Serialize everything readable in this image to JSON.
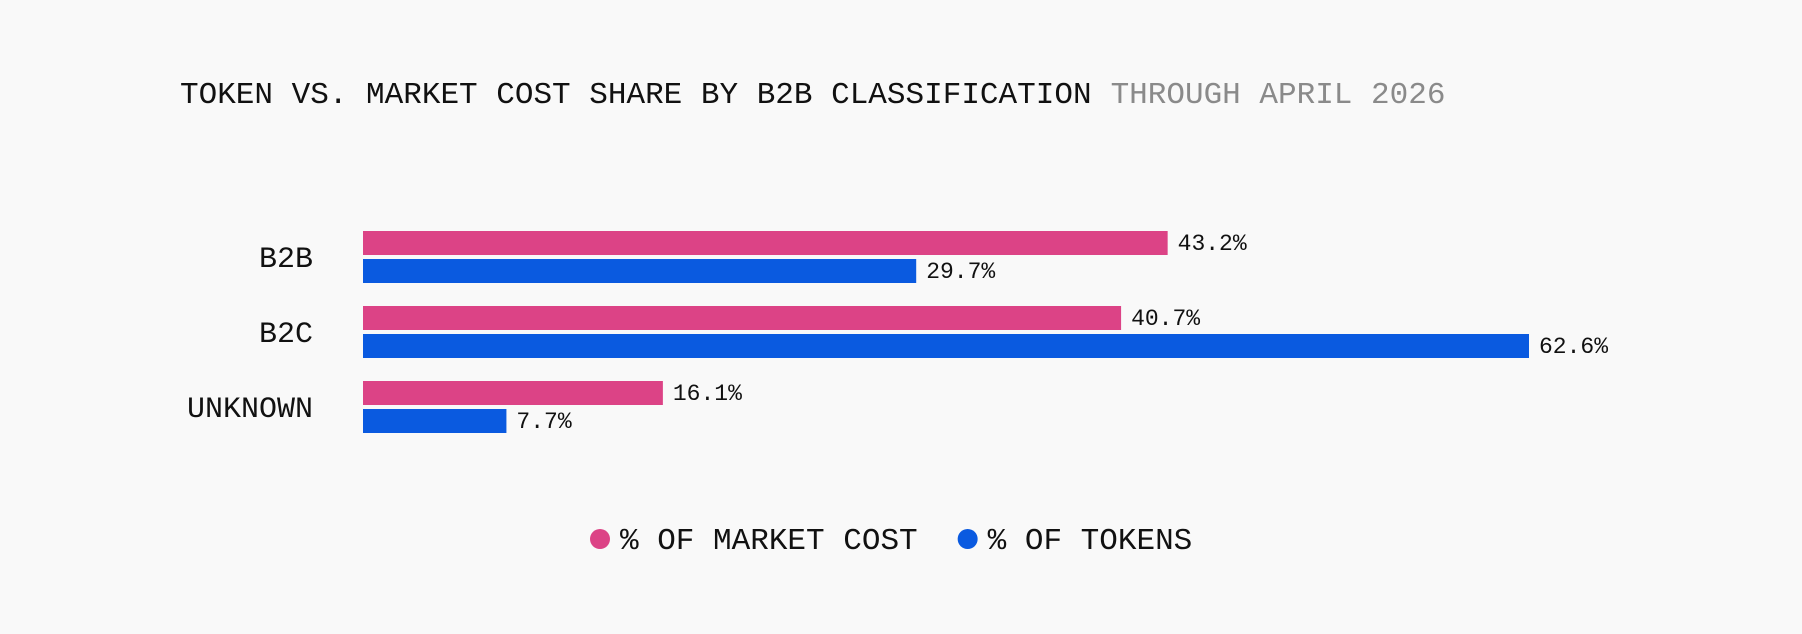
{
  "chart_data": {
    "type": "grouped-hbar",
    "title": "TOKEN VS. MARKET COST SHARE BY B2B CLASSIFICATION",
    "subtitle": "THROUGH APRIL 2026",
    "categories": [
      "B2B",
      "B2C",
      "UNKNOWN"
    ],
    "series": [
      {
        "name": "% OF MARKET COST",
        "color": "#dc4386",
        "values": [
          43.2,
          40.7,
          16.1
        ],
        "value_labels": [
          "43.2%",
          "40.7%",
          "16.1%"
        ]
      },
      {
        "name": "% OF TOKENS",
        "color": "#0a5ae0",
        "values": [
          29.7,
          62.6,
          7.7
        ],
        "value_labels": [
          "29.7%",
          "62.6%",
          "7.7%"
        ]
      }
    ],
    "legend": "bottom"
  }
}
